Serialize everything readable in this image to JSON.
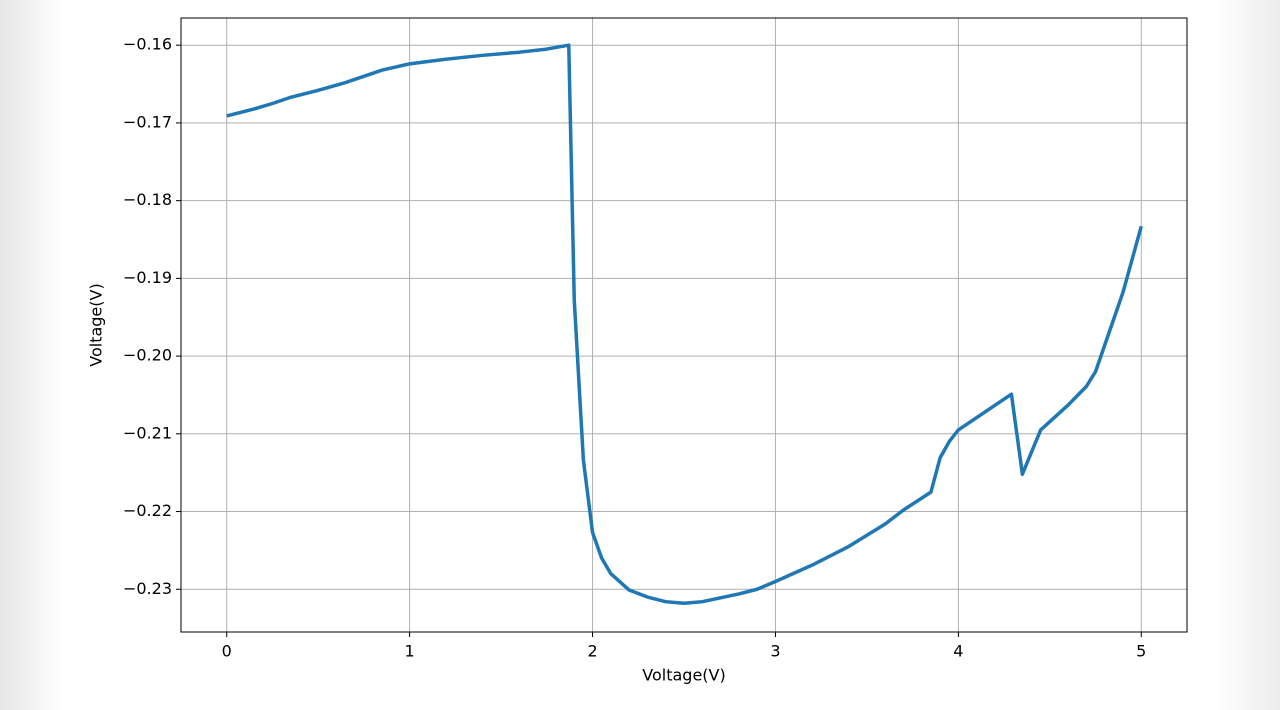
{
  "chart_data": {
    "type": "line",
    "xlabel": "Voltage(V)",
    "ylabel": "Voltage(V)",
    "x": [
      0,
      0.15,
      0.25,
      0.35,
      0.5,
      0.65,
      0.75,
      0.85,
      1.0,
      1.1,
      1.2,
      1.4,
      1.6,
      1.75,
      1.87,
      1.9,
      1.95,
      2.0,
      2.05,
      2.1,
      2.2,
      2.3,
      2.4,
      2.5,
      2.6,
      2.8,
      2.9,
      3.0,
      3.2,
      3.4,
      3.6,
      3.7,
      3.85,
      3.9,
      3.95,
      4.0,
      4.29,
      4.35,
      4.45,
      4.6,
      4.7,
      4.75,
      4.9,
      5.0
    ],
    "series": [
      {
        "color": "#1f77b4",
        "values": [
          -0.1691,
          -0.1682,
          -0.1675,
          -0.1667,
          -0.1658,
          -0.1648,
          -0.164,
          -0.1632,
          -0.1624,
          -0.1621,
          -0.1618,
          -0.1613,
          -0.1609,
          -0.1605,
          -0.16,
          -0.1928,
          -0.2134,
          -0.2227,
          -0.226,
          -0.228,
          -0.2301,
          -0.231,
          -0.2316,
          -0.2318,
          -0.2316,
          -0.2306,
          -0.23,
          -0.229,
          -0.2269,
          -0.2245,
          -0.2216,
          -0.2198,
          -0.2175,
          -0.2131,
          -0.211,
          -0.2095,
          -0.2049,
          -0.2152,
          -0.2095,
          -0.2063,
          -0.2039,
          -0.202,
          -0.1918,
          -0.1833
        ]
      }
    ],
    "xlim": [
      -0.25,
      5.25
    ],
    "xticks": [
      0,
      1,
      2,
      3,
      4,
      5
    ],
    "ylim": [
      -0.2355,
      -0.1565
    ],
    "yticks": [
      {
        "value": -0.23,
        "label": "−0.23"
      },
      {
        "value": -0.22,
        "label": "−0.22"
      },
      {
        "value": -0.21,
        "label": "−0.21"
      },
      {
        "value": -0.2,
        "label": "−0.20"
      },
      {
        "value": -0.19,
        "label": "−0.19"
      },
      {
        "value": -0.18,
        "label": "−0.18"
      },
      {
        "value": -0.17,
        "label": "−0.17"
      },
      {
        "value": -0.16,
        "label": "−0.16"
      }
    ],
    "grid": true
  }
}
